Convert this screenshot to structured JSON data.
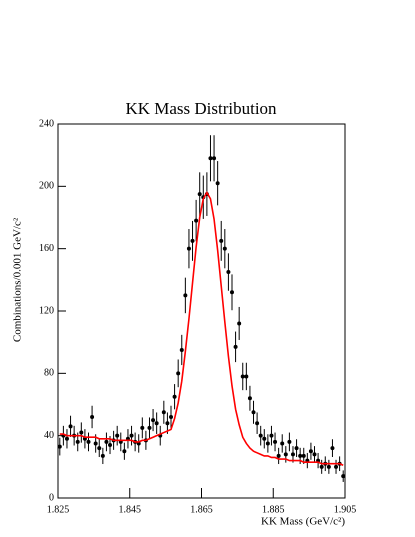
{
  "chart_data": {
    "type": "histogram",
    "title": "KK Mass Distribution",
    "x_label": "KK Mass (GeV/c²)",
    "y_label": "Combinations/0.001 GeV/c²",
    "bins": [
      1.825,
      1.826,
      1.827,
      1.828,
      1.829,
      1.83,
      1.831,
      1.832,
      1.833,
      1.834,
      1.835,
      1.836,
      1.837,
      1.838,
      1.839,
      1.84,
      1.841,
      1.842,
      1.843,
      1.844,
      1.845,
      1.846,
      1.847,
      1.848,
      1.849,
      1.85,
      1.851,
      1.852,
      1.853,
      1.854,
      1.855,
      1.856,
      1.857,
      1.858,
      1.859,
      1.86,
      1.861,
      1.862,
      1.863,
      1.864,
      1.865,
      1.866,
      1.867,
      1.868,
      1.869,
      1.87,
      1.871,
      1.872,
      1.873,
      1.874,
      1.875,
      1.876,
      1.877,
      1.878,
      1.879,
      1.88,
      1.881,
      1.882,
      1.883,
      1.884,
      1.885,
      1.886,
      1.887,
      1.888,
      1.889,
      1.89,
      1.891,
      1.892,
      1.893,
      1.894,
      1.895,
      1.896,
      1.897,
      1.898,
      1.899,
      1.9,
      1.901,
      1.902,
      1.903,
      1.904,
      1.905
    ],
    "series": [
      {
        "style": "points",
        "color": "#000000",
        "values": [
          33,
          40,
          38,
          46,
          40,
          36,
          42,
          38,
          36,
          52,
          35,
          32,
          27,
          36,
          34,
          37,
          40,
          36,
          30,
          38,
          40,
          36,
          35,
          45,
          37,
          45,
          50,
          48,
          40,
          55,
          48,
          52,
          65,
          80,
          95,
          130,
          160,
          165,
          178,
          195,
          193,
          195,
          218,
          218,
          202,
          165,
          160,
          145,
          132,
          97,
          112,
          78,
          78,
          64,
          55,
          48,
          40,
          38,
          35,
          40,
          36,
          27,
          35,
          28,
          36,
          28,
          32,
          27,
          27,
          24,
          30,
          28,
          24,
          20,
          22,
          20,
          32,
          20,
          22,
          14
        ],
        "errors": [
          5.7,
          6.3,
          6.2,
          6.8,
          6.3,
          6,
          6.5,
          6.2,
          6,
          7.2,
          5.9,
          5.7,
          5.2,
          6,
          5.8,
          6.1,
          6.3,
          6,
          5.5,
          6.2,
          6.3,
          6,
          5.9,
          6.7,
          6.1,
          6.7,
          7.1,
          6.9,
          6.3,
          7.4,
          6.9,
          7.2,
          8.1,
          8.9,
          9.7,
          11.4,
          12.6,
          12.8,
          13.3,
          14,
          13.9,
          14,
          14.8,
          14.8,
          14.2,
          12.8,
          12.6,
          12,
          11.5,
          9.8,
          10.6,
          8.8,
          8.8,
          8,
          7.4,
          6.9,
          6.3,
          6.2,
          5.9,
          6.3,
          6,
          5.2,
          5.9,
          5.3,
          6,
          5.3,
          5.7,
          5.2,
          5.2,
          4.9,
          5.5,
          5.3,
          4.9,
          4.5,
          4.7,
          4.5,
          5.7,
          4.5,
          4.7,
          3.7
        ]
      },
      {
        "style": "line",
        "color": "#ff0000",
        "values": [
          41,
          41,
          40,
          40,
          40,
          40,
          40,
          39,
          39,
          39,
          39,
          38,
          38,
          38,
          38,
          37,
          37,
          37,
          37,
          37,
          37,
          36,
          36,
          37,
          37,
          38,
          39,
          40,
          41,
          42,
          43,
          44,
          51,
          61,
          75,
          94,
          115,
          138,
          161,
          180,
          192,
          196,
          192,
          179,
          159,
          136,
          113,
          91,
          72,
          57,
          47,
          39,
          35,
          32,
          30,
          29,
          28,
          27,
          27,
          26,
          26,
          25,
          25,
          25,
          24,
          24,
          24,
          24,
          23,
          23,
          23,
          23,
          23,
          22,
          22,
          22,
          22,
          22,
          22,
          21
        ]
      }
    ],
    "xlim": [
      1.825,
      1.905
    ],
    "xticks": [
      1.825,
      1.845,
      1.865,
      1.885,
      1.905
    ],
    "ylim": [
      0,
      240
    ],
    "yticks": [
      0,
      40,
      80,
      120,
      160,
      200,
      240
    ],
    "grid": false
  }
}
